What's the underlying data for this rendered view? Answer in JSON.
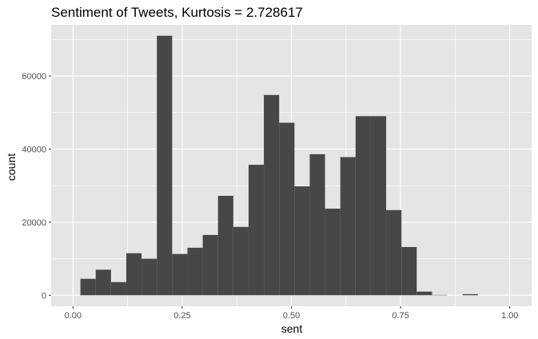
{
  "chart_data": {
    "type": "bar",
    "title": "Sentiment of Tweets, Kurtosis = 2.728617",
    "xlabel": "sent",
    "ylabel": "count",
    "xlim": [
      -0.05,
      1.05
    ],
    "ylim": [
      -3000,
      74000
    ],
    "x_ticks": [
      0.0,
      0.25,
      0.5,
      0.75,
      1.0
    ],
    "x_tick_labels": [
      "0.00",
      "0.25",
      "0.50",
      "0.75",
      "1.00"
    ],
    "y_ticks": [
      0,
      20000,
      40000,
      60000
    ],
    "y_tick_labels": [
      "0",
      "20000",
      "40000",
      "60000"
    ],
    "grid": true,
    "bar_color": "#474747",
    "panel_color": "#e5e5e5",
    "grid_color": "#ffffff",
    "bins": [
      {
        "x0": 0.017,
        "x1": 0.052,
        "count": 4500
      },
      {
        "x0": 0.052,
        "x1": 0.087,
        "count": 7000
      },
      {
        "x0": 0.087,
        "x1": 0.122,
        "count": 3600
      },
      {
        "x0": 0.122,
        "x1": 0.157,
        "count": 11500
      },
      {
        "x0": 0.157,
        "x1": 0.192,
        "count": 10000
      },
      {
        "x0": 0.192,
        "x1": 0.227,
        "count": 71000
      },
      {
        "x0": 0.227,
        "x1": 0.262,
        "count": 11300
      },
      {
        "x0": 0.262,
        "x1": 0.297,
        "count": 13000
      },
      {
        "x0": 0.297,
        "x1": 0.332,
        "count": 16500
      },
      {
        "x0": 0.332,
        "x1": 0.367,
        "count": 27200
      },
      {
        "x0": 0.367,
        "x1": 0.402,
        "count": 18700
      },
      {
        "x0": 0.402,
        "x1": 0.437,
        "count": 35700
      },
      {
        "x0": 0.437,
        "x1": 0.472,
        "count": 54800
      },
      {
        "x0": 0.472,
        "x1": 0.507,
        "count": 47200
      },
      {
        "x0": 0.507,
        "x1": 0.542,
        "count": 29800
      },
      {
        "x0": 0.542,
        "x1": 0.577,
        "count": 38600
      },
      {
        "x0": 0.577,
        "x1": 0.612,
        "count": 23700
      },
      {
        "x0": 0.612,
        "x1": 0.647,
        "count": 37800
      },
      {
        "x0": 0.647,
        "x1": 0.682,
        "count": 49000
      },
      {
        "x0": 0.682,
        "x1": 0.717,
        "count": 49000
      },
      {
        "x0": 0.717,
        "x1": 0.752,
        "count": 23300
      },
      {
        "x0": 0.752,
        "x1": 0.787,
        "count": 13200
      },
      {
        "x0": 0.787,
        "x1": 0.822,
        "count": 1000
      },
      {
        "x0": 0.822,
        "x1": 0.857,
        "count": 100
      },
      {
        "x0": 0.857,
        "x1": 0.892,
        "count": 0
      },
      {
        "x0": 0.892,
        "x1": 0.927,
        "count": 300
      },
      {
        "x0": 0.927,
        "x1": 0.962,
        "count": 0
      }
    ]
  }
}
